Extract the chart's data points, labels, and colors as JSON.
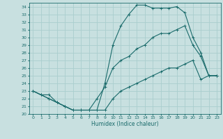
{
  "title": "",
  "xlabel": "Humidex (Indice chaleur)",
  "bg_color": "#c8e0e0",
  "grid_color": "#aacece",
  "line_color": "#1a6b6b",
  "xlim": [
    -0.5,
    23.5
  ],
  "ylim": [
    20,
    34.5
  ],
  "xticks": [
    0,
    1,
    2,
    3,
    4,
    5,
    6,
    7,
    8,
    9,
    10,
    11,
    12,
    13,
    14,
    15,
    16,
    17,
    18,
    19,
    20,
    21,
    22,
    23
  ],
  "yticks": [
    20,
    21,
    22,
    23,
    24,
    25,
    26,
    27,
    28,
    29,
    30,
    31,
    32,
    33,
    34
  ],
  "series": [
    {
      "x": [
        0,
        1,
        2,
        3,
        4,
        5,
        6,
        7,
        8,
        9,
        10,
        11,
        12,
        13,
        14,
        15,
        16,
        17,
        18,
        19,
        20,
        21,
        22,
        23
      ],
      "y": [
        23.0,
        22.5,
        22.5,
        21.5,
        21.0,
        20.5,
        20.5,
        20.5,
        20.5,
        24.0,
        29.0,
        31.5,
        33.0,
        34.2,
        34.2,
        33.8,
        33.8,
        33.8,
        34.0,
        33.2,
        30.0,
        28.0,
        25.0,
        25.0
      ]
    },
    {
      "x": [
        0,
        1,
        2,
        3,
        4,
        5,
        6,
        7,
        8,
        9,
        10,
        11,
        12,
        13,
        14,
        15,
        16,
        17,
        18,
        19,
        20,
        21,
        22,
        23
      ],
      "y": [
        23.0,
        22.5,
        22.0,
        21.5,
        21.0,
        20.5,
        20.5,
        20.5,
        22.0,
        23.5,
        26.0,
        27.0,
        27.5,
        28.5,
        29.0,
        30.0,
        30.5,
        30.5,
        31.0,
        31.5,
        29.0,
        27.5,
        25.0,
        25.0
      ]
    },
    {
      "x": [
        0,
        1,
        2,
        3,
        4,
        5,
        6,
        7,
        8,
        9,
        10,
        11,
        12,
        13,
        14,
        15,
        16,
        17,
        18,
        19,
        20,
        21,
        22,
        23
      ],
      "y": [
        23.0,
        22.5,
        22.0,
        21.5,
        21.0,
        20.5,
        20.5,
        20.5,
        20.5,
        20.5,
        22.0,
        23.0,
        23.5,
        24.0,
        24.5,
        25.0,
        25.5,
        26.0,
        26.0,
        26.5,
        27.0,
        24.5,
        25.0,
        25.0
      ]
    }
  ]
}
